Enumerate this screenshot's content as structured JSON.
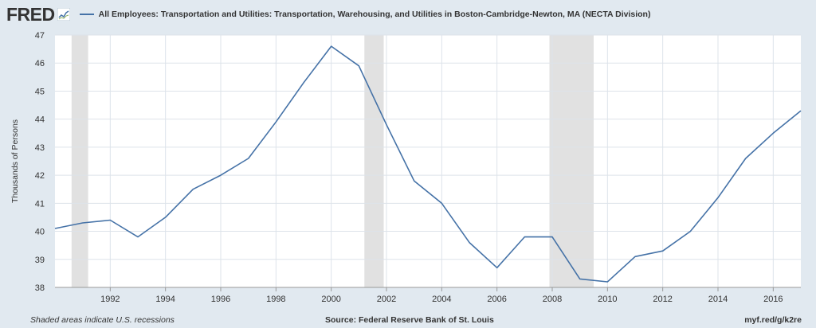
{
  "header": {
    "logo_text": "FRED",
    "title": "All Employees: Transportation and Utilities: Transportation, Warehousing, and Utilities in Boston-Cambridge-Newton, MA (NECTA Division)"
  },
  "footer": {
    "note": "Shaded areas indicate U.S. recessions",
    "source": "Source: Federal Reserve Bank of St. Louis",
    "link": "myf.red/g/k2re"
  },
  "colors": {
    "background": "#e1e9f0",
    "plot_background": "#ffffff",
    "line": "#4572a7",
    "recession": "#e1e1e1",
    "grid": "#dde3ea"
  },
  "chart_data": {
    "type": "line",
    "xlabel": "",
    "ylabel": "Thousands of Persons",
    "ylim": [
      38,
      47
    ],
    "xlim": [
      1990,
      2017
    ],
    "grid": true,
    "yticks": [
      38,
      39,
      40,
      41,
      42,
      43,
      44,
      45,
      46,
      47
    ],
    "xticks": [
      1992,
      1994,
      1996,
      1998,
      2000,
      2002,
      2004,
      2006,
      2008,
      2010,
      2012,
      2014,
      2016
    ],
    "recessions": [
      [
        1990.6,
        1991.2
      ],
      [
        2001.2,
        2001.9
      ],
      [
        2007.9,
        2009.5
      ]
    ],
    "series": [
      {
        "name": "All Employees: Transportation and Utilities: Transportation, Warehousing, and Utilities in Boston-Cambridge-Newton, MA (NECTA Division)",
        "x": [
          1990,
          1991,
          1992,
          1993,
          1994,
          1995,
          1996,
          1997,
          1998,
          1999,
          2000,
          2001,
          2002,
          2003,
          2004,
          2005,
          2006,
          2007,
          2008,
          2009,
          2010,
          2011,
          2012,
          2013,
          2014,
          2015,
          2016,
          2017
        ],
        "y": [
          40.1,
          40.3,
          40.4,
          39.8,
          40.5,
          41.5,
          42.0,
          42.6,
          43.9,
          45.3,
          46.6,
          45.9,
          43.8,
          41.8,
          41.0,
          39.6,
          38.7,
          39.8,
          39.8,
          38.3,
          38.2,
          39.1,
          39.3,
          40.0,
          41.2,
          42.6,
          43.5,
          44.3
        ]
      }
    ]
  }
}
